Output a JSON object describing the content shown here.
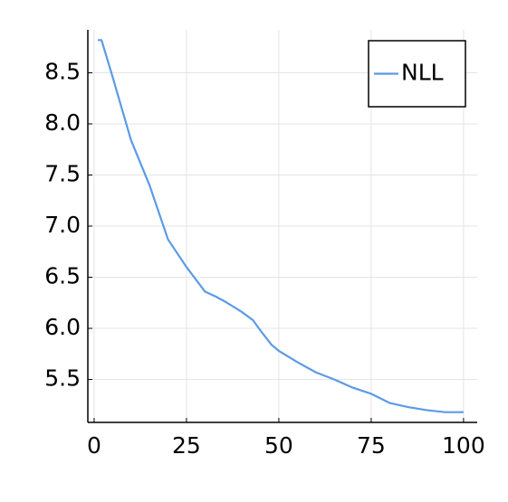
{
  "chart_data": {
    "type": "line",
    "x": [
      1,
      2,
      5,
      10,
      15,
      20,
      25,
      30,
      33,
      36,
      40,
      43,
      45,
      48,
      50,
      55,
      60,
      65,
      70,
      75,
      80,
      85,
      90,
      95,
      100
    ],
    "series": [
      {
        "name": "NLL",
        "color": "#5b9be6",
        "values": [
          8.82,
          8.82,
          8.46,
          7.84,
          7.4,
          6.87,
          6.6,
          6.36,
          6.31,
          6.25,
          6.16,
          6.08,
          5.98,
          5.84,
          5.78,
          5.67,
          5.57,
          5.5,
          5.42,
          5.36,
          5.27,
          5.23,
          5.2,
          5.18,
          5.18
        ]
      }
    ],
    "xlim": [
      -1.7,
      103.7
    ],
    "xticks": [
      0,
      25,
      50,
      75,
      100
    ],
    "ylim": [
      5.08,
      8.92
    ],
    "yticks": [
      5.5,
      {
        "value": 6,
        "label": "6.0"
      },
      6.5,
      {
        "value": 7,
        "label": "7.0"
      },
      7.5,
      {
        "value": 8,
        "label": "8.0"
      },
      8.5
    ],
    "grid": true,
    "legend": "top-right"
  }
}
